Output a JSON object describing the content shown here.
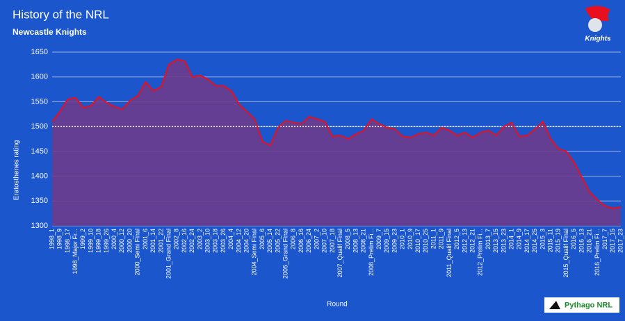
{
  "chart_data": {
    "type": "area-line",
    "title": "History of the NRL",
    "subtitle": "Newcastle Knights",
    "x_label": "Round",
    "y_label": "Eratosthenes rating",
    "brand": "Pythago NRL",
    "logo_text": "Knights",
    "categories": [
      "1998_1",
      "1998_9",
      "1998_17",
      "1998_Major Fr...",
      "1999_2",
      "1999_10",
      "1999_18",
      "1999_26",
      "2000_4",
      "2000_12",
      "2000_20",
      "2000_Semi Final",
      "2001_6",
      "2001_14",
      "2001_22",
      "2001_Grand Final",
      "2002_8",
      "2002_16",
      "2002_24",
      "2003_2",
      "2003_10",
      "2003_18",
      "2003_26",
      "2004_4",
      "2004_12",
      "2004_20",
      "2004_Semi Final",
      "2005_6",
      "2005_14",
      "2005_22",
      "2005_Grand Final",
      "2006_8",
      "2006_16",
      "2006_24",
      "2007_2",
      "2007_10",
      "2007_18",
      "2007_Qualif Final",
      "2008_5",
      "2008_13",
      "2008_21",
      "2008_Prelim Fi...",
      "2009_7",
      "2009_15",
      "2009_23",
      "2010_1",
      "2010_9",
      "2010_17",
      "2010_25",
      "2011_1",
      "2011_9",
      "2011_Qualif Final",
      "2012_5",
      "2012_13",
      "2012_21",
      "2012_Prelim Fi...",
      "2013_7",
      "2013_15",
      "2013_23",
      "2014_1",
      "2014_9",
      "2014_17",
      "2014_25",
      "2015_3",
      "2015_11",
      "2015_19",
      "2015_Qualif Final",
      "2016_5",
      "2016_13",
      "2016_21",
      "2016_Prelim Fi...",
      "2017_7",
      "2017_15",
      "2017_23"
    ],
    "values": [
      1510,
      1530,
      1555,
      1558,
      1538,
      1542,
      1560,
      1548,
      1540,
      1535,
      1552,
      1562,
      1590,
      1572,
      1580,
      1625,
      1635,
      1632,
      1600,
      1603,
      1595,
      1582,
      1582,
      1572,
      1545,
      1530,
      1515,
      1470,
      1462,
      1498,
      1512,
      1508,
      1505,
      1520,
      1515,
      1510,
      1480,
      1482,
      1475,
      1485,
      1492,
      1515,
      1505,
      1498,
      1495,
      1480,
      1478,
      1485,
      1488,
      1482,
      1498,
      1492,
      1482,
      1488,
      1478,
      1488,
      1492,
      1482,
      1500,
      1508,
      1480,
      1482,
      1495,
      1510,
      1475,
      1455,
      1450,
      1428,
      1398,
      1368,
      1352,
      1340,
      1335,
      1338
    ],
    "color": "#e8101e",
    "fill": "#6b3c8c",
    "ylim": [
      1300,
      1650
    ],
    "yticks": [
      1300,
      1350,
      1400,
      1450,
      1500,
      1550,
      1600,
      1650
    ],
    "reference": 1500,
    "grid": true
  }
}
